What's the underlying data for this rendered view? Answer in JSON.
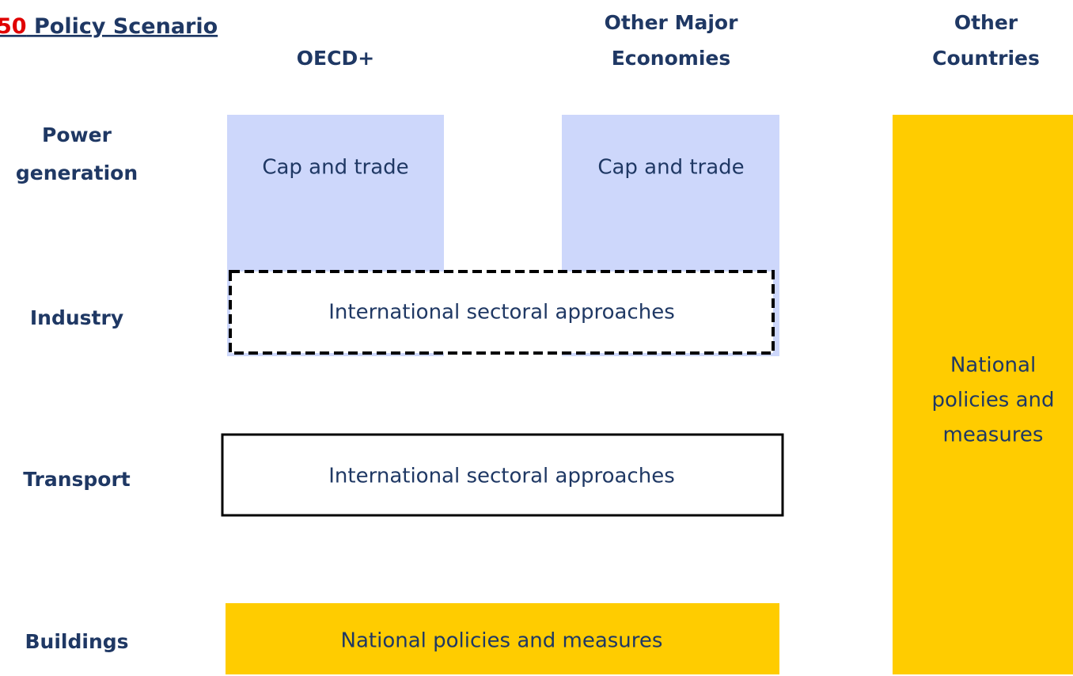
{
  "title": {
    "number": "50",
    "text": "Policy Scenario"
  },
  "columns": [
    [
      "OECD+"
    ],
    [
      "Other Major",
      "Economies"
    ],
    [
      "Other",
      "Countries"
    ]
  ],
  "rows": [
    [
      "Power",
      "generation"
    ],
    [
      "Industry"
    ],
    [
      "Transport"
    ],
    [
      "Buildings"
    ]
  ],
  "cells": {
    "power_oecd": [
      "Cap and trade"
    ],
    "power_major": [
      "Cap and trade"
    ],
    "industry": [
      "International sectoral approaches"
    ],
    "transport": [
      "International sectoral approaches"
    ],
    "buildings": [
      "National policies and measures"
    ],
    "other_countries": [
      "National",
      "policies and",
      "measures"
    ]
  }
}
